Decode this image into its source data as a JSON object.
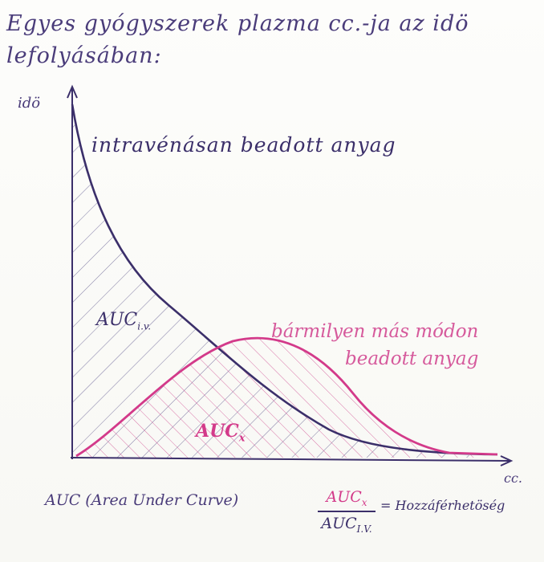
{
  "title": "Egyes gyógyszerek plazma cc.-ja az idö lefolyásában:",
  "axes": {
    "y_label": "idö",
    "x_label": "cc."
  },
  "curves": {
    "iv_label": "intravénásan beadott anyag",
    "other_label_line1": "bármilyen más módon",
    "other_label_line2": "beadott anyag"
  },
  "areas": {
    "auc_iv_main": "AUC",
    "auc_iv_sub": "i.v.",
    "auc_x_main": "AUC",
    "auc_x_sub": "x"
  },
  "footer": {
    "auc_definition": "AUC (Area Under Curve)",
    "fraction_numerator_main": "AUC",
    "fraction_numerator_sub": "x",
    "fraction_denominator_main": "AUC",
    "fraction_denominator_sub": "I.V.",
    "equals_text": "= Hozzáférhetöség"
  },
  "colors": {
    "ink": "#3b2f6a",
    "pink": "#d33a8a",
    "hatch": "#6b6596"
  }
}
